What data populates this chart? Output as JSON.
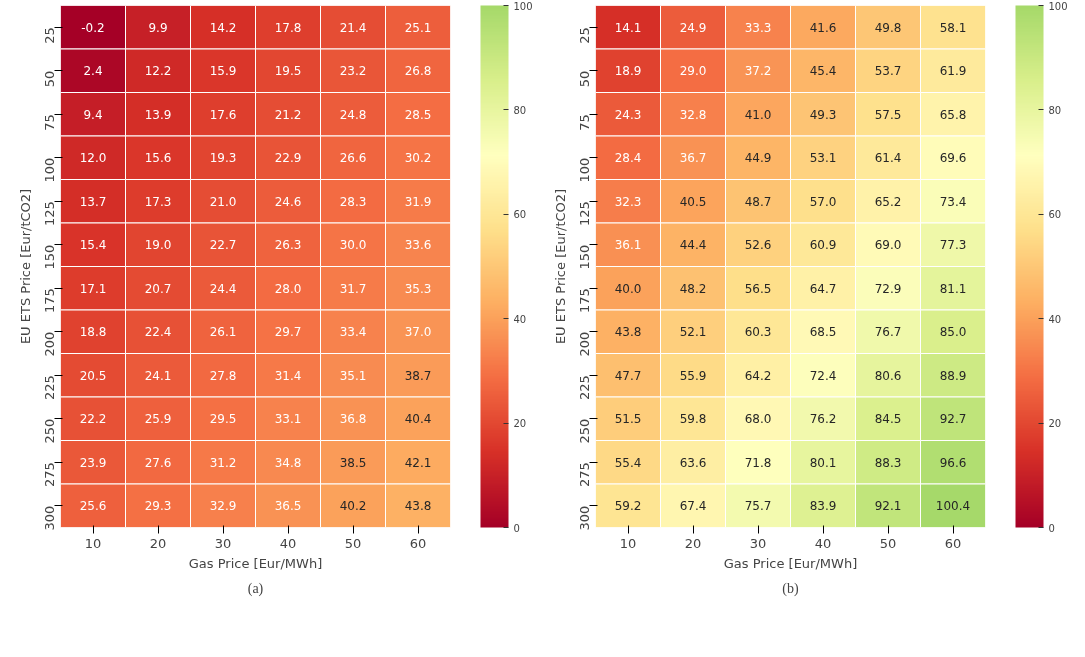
{
  "chart_data": [
    {
      "type": "heatmap",
      "xlabel": "Gas Price [Eur/MWh]",
      "ylabel": "EU ETS Price [Eur/tCO2]",
      "annotations": [
        "(a)"
      ],
      "categories": [
        "10",
        "20",
        "30",
        "40",
        "50",
        "60"
      ],
      "y_categories": [
        "25",
        "50",
        "75",
        "100",
        "125",
        "150",
        "175",
        "200",
        "225",
        "250",
        "275",
        "300"
      ],
      "cells": [
        [
          -0.2,
          9.9,
          14.2,
          17.8,
          21.4,
          25.1
        ],
        [
          2.4,
          12.2,
          15.9,
          19.5,
          23.2,
          26.8
        ],
        [
          9.4,
          13.9,
          17.6,
          21.2,
          24.8,
          28.5
        ],
        [
          12.0,
          15.6,
          19.3,
          22.9,
          26.6,
          30.2
        ],
        [
          13.7,
          17.3,
          21.0,
          24.6,
          28.3,
          31.9
        ],
        [
          15.4,
          19.0,
          22.7,
          26.3,
          30.0,
          33.6
        ],
        [
          17.1,
          20.7,
          24.4,
          28.0,
          31.7,
          35.3
        ],
        [
          18.8,
          22.4,
          26.1,
          29.7,
          33.4,
          37.0
        ],
        [
          20.5,
          24.1,
          27.8,
          31.4,
          35.1,
          38.7
        ],
        [
          22.2,
          25.9,
          29.5,
          33.1,
          36.8,
          40.4
        ],
        [
          23.9,
          27.6,
          31.2,
          34.8,
          38.5,
          42.1
        ],
        [
          25.6,
          29.3,
          32.9,
          36.5,
          40.2,
          43.8
        ]
      ],
      "cell_labels": [
        [
          "-0.2",
          "9.9",
          "14.2",
          "17.8",
          "21.4",
          "25.1"
        ],
        [
          "2.4",
          "12.2",
          "15.9",
          "19.5",
          "23.2",
          "26.8"
        ],
        [
          "9.4",
          "13.9",
          "17.6",
          "21.2",
          "24.8",
          "28.5"
        ],
        [
          "12.0",
          "15.6",
          "19.3",
          "22.9",
          "26.6",
          "30.2"
        ],
        [
          "13.7",
          "17.3",
          "21.0",
          "24.6",
          "28.3",
          "31.9"
        ],
        [
          "15.4",
          "19.0",
          "22.7",
          "26.3",
          "30.0",
          "33.6"
        ],
        [
          "17.1",
          "20.7",
          "24.4",
          "28.0",
          "31.7",
          "35.3"
        ],
        [
          "18.8",
          "22.4",
          "26.1",
          "29.7",
          "33.4",
          "37.0"
        ],
        [
          "20.5",
          "24.1",
          "27.8",
          "31.4",
          "35.1",
          "38.7"
        ],
        [
          "22.2",
          "25.9",
          "29.5",
          "33.1",
          "36.8",
          "40.4"
        ],
        [
          "23.9",
          "27.6",
          "31.2",
          "34.8",
          "38.5",
          "42.1"
        ],
        [
          "25.6",
          "29.3",
          "32.9",
          "36.5",
          "40.2",
          "43.8"
        ]
      ],
      "clim": [
        0,
        100
      ],
      "cticks": [
        0,
        20,
        40,
        60,
        80,
        100
      ]
    },
    {
      "type": "heatmap",
      "xlabel": "Gas Price [Eur/MWh]",
      "ylabel": "EU ETS Price [Eur/tCO2]",
      "annotations": [
        "(b)"
      ],
      "categories": [
        "10",
        "20",
        "30",
        "40",
        "50",
        "60"
      ],
      "y_categories": [
        "25",
        "50",
        "75",
        "100",
        "125",
        "150",
        "175",
        "200",
        "225",
        "250",
        "275",
        "300"
      ],
      "cells": [
        [
          14.1,
          24.9,
          33.3,
          41.6,
          49.8,
          58.1
        ],
        [
          18.9,
          29.0,
          37.2,
          45.4,
          53.7,
          61.9
        ],
        [
          24.3,
          32.8,
          41.0,
          49.3,
          57.5,
          65.8
        ],
        [
          28.4,
          36.7,
          44.9,
          53.1,
          61.4,
          69.6
        ],
        [
          32.3,
          40.5,
          48.7,
          57.0,
          65.2,
          73.4
        ],
        [
          36.1,
          44.4,
          52.6,
          60.9,
          69.0,
          77.3
        ],
        [
          40.0,
          48.2,
          56.5,
          64.7,
          72.9,
          81.1
        ],
        [
          43.8,
          52.1,
          60.3,
          68.5,
          76.7,
          85.0
        ],
        [
          47.7,
          55.9,
          64.2,
          72.4,
          80.6,
          88.9
        ],
        [
          51.5,
          59.8,
          68.0,
          76.2,
          84.5,
          92.7
        ],
        [
          55.4,
          63.6,
          71.8,
          80.1,
          88.3,
          96.6
        ],
        [
          59.2,
          67.4,
          75.7,
          83.9,
          92.1,
          100.4
        ]
      ],
      "cell_labels": [
        [
          "14.1",
          "24.9",
          "33.3",
          "41.6",
          "49.8",
          "58.1"
        ],
        [
          "18.9",
          "29.0",
          "37.2",
          "45.4",
          "53.7",
          "61.9"
        ],
        [
          "24.3",
          "32.8",
          "41.0",
          "49.3",
          "57.5",
          "65.8"
        ],
        [
          "28.4",
          "36.7",
          "44.9",
          "53.1",
          "61.4",
          "69.6"
        ],
        [
          "32.3",
          "40.5",
          "48.7",
          "57.0",
          "65.2",
          "73.4"
        ],
        [
          "36.1",
          "44.4",
          "52.6",
          "60.9",
          "69.0",
          "77.3"
        ],
        [
          "40.0",
          "48.2",
          "56.5",
          "64.7",
          "72.9",
          "81.1"
        ],
        [
          "43.8",
          "52.1",
          "60.3",
          "68.5",
          "76.7",
          "85.0"
        ],
        [
          "47.7",
          "55.9",
          "64.2",
          "72.4",
          "80.6",
          "88.9"
        ],
        [
          "51.5",
          "59.8",
          "68.0",
          "76.2",
          "84.5",
          "92.7"
        ],
        [
          "55.4",
          "63.6",
          "71.8",
          "80.1",
          "88.3",
          "96.6"
        ],
        [
          "59.2",
          "67.4",
          "75.7",
          "83.9",
          "92.1",
          "100.4"
        ]
      ],
      "clim": [
        0,
        100
      ],
      "cticks": [
        0,
        20,
        40,
        60,
        80,
        100
      ]
    }
  ]
}
